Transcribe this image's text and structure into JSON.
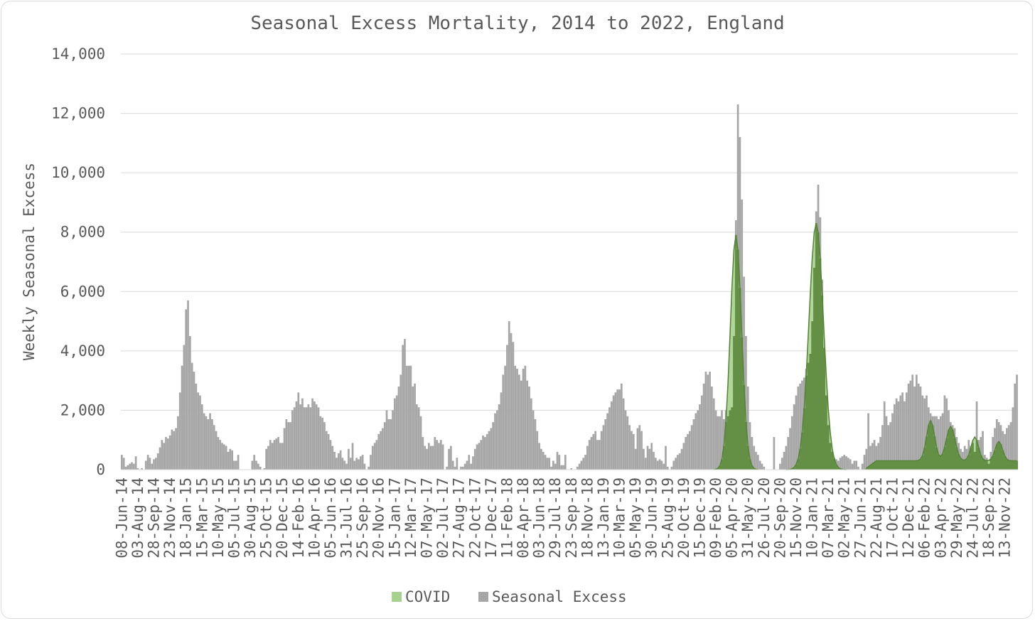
{
  "chart_data": {
    "type": "bar",
    "title": "Seasonal Excess Mortality, 2014 to 2022, England",
    "xlabel": "",
    "ylabel": "Weekly Seasonal Excess",
    "ylim": [
      0,
      14000
    ],
    "yticks": [
      0,
      2000,
      4000,
      6000,
      8000,
      10000,
      12000,
      14000
    ],
    "ytick_labels": [
      "0",
      "2,000",
      "4,000",
      "6,000",
      "8,000",
      "10,000",
      "12,000",
      "14,000"
    ],
    "grid": true,
    "legend_position": "bottom",
    "start_week": "08-Jun-14",
    "x_tick_labels": [
      "08-Jun-14",
      "03-Aug-14",
      "28-Sep-14",
      "23-Nov-14",
      "18-Jan-15",
      "15-Mar-15",
      "10-May-15",
      "05-Jul-15",
      "30-Aug-15",
      "25-Oct-15",
      "20-Dec-15",
      "14-Feb-16",
      "10-Apr-16",
      "05-Jun-16",
      "31-Jul-16",
      "25-Sep-16",
      "20-Nov-16",
      "15-Jan-17",
      "12-Mar-17",
      "07-May-17",
      "02-Jul-17",
      "27-Aug-17",
      "22-Oct-17",
      "17-Dec-17",
      "11-Feb-18",
      "08-Apr-18",
      "03-Jun-18",
      "29-Jul-18",
      "23-Sep-18",
      "18-Nov-18",
      "13-Jan-19",
      "10-Mar-19",
      "05-May-19",
      "30-Jun-19",
      "25-Aug-19",
      "20-Oct-19",
      "15-Dec-19",
      "09-Feb-20",
      "05-Apr-20",
      "31-May-20",
      "26-Jul-20",
      "20-Sep-20",
      "15-Nov-20",
      "10-Jan-21",
      "07-Mar-21",
      "02-May-21",
      "27-Jun-21",
      "22-Aug-21",
      "17-Oct-21",
      "12-Dec-21",
      "06-Feb-22",
      "03-Apr-22",
      "29-May-22",
      "24-Jul-22",
      "18-Sep-22",
      "13-Nov-22"
    ],
    "series": [
      {
        "name": "Seasonal Excess",
        "color": "#a6a6a6",
        "values": [
          500,
          400,
          100,
          150,
          200,
          250,
          200,
          450,
          50,
          0,
          50,
          0,
          300,
          500,
          400,
          200,
          350,
          400,
          550,
          750,
          1000,
          900,
          1100,
          1050,
          1150,
          1350,
          1300,
          1400,
          1800,
          2600,
          3500,
          4200,
          5400,
          5700,
          4500,
          3600,
          3300,
          2900,
          2600,
          2500,
          2200,
          1900,
          1800,
          1700,
          1900,
          1700,
          1500,
          1300,
          1100,
          1000,
          900,
          850,
          800,
          600,
          700,
          650,
          300,
          300,
          500,
          0,
          0,
          0,
          0,
          0,
          0,
          300,
          500,
          300,
          200,
          100,
          0,
          50,
          700,
          800,
          1000,
          900,
          1000,
          1050,
          1100,
          900,
          900,
          1400,
          1700,
          1600,
          1600,
          2000,
          2100,
          2300,
          2600,
          2200,
          2400,
          2100,
          2100,
          2200,
          2100,
          2400,
          2300,
          2200,
          2100,
          1800,
          1750,
          1600,
          1300,
          1200,
          1000,
          800,
          600,
          400,
          550,
          650,
          400,
          300,
          200,
          700,
          400,
          900,
          300,
          400,
          350,
          450,
          500,
          200,
          0,
          100,
          500,
          800,
          900,
          1000,
          1200,
          1300,
          1400,
          1600,
          2000,
          1700,
          1700,
          2000,
          2400,
          2500,
          2800,
          3200,
          4200,
          4400,
          3500,
          3500,
          3500,
          2800,
          2900,
          2200,
          2100,
          1800,
          1100,
          800,
          700,
          900,
          800,
          800,
          1100,
          1000,
          900,
          1000,
          850,
          0,
          100,
          700,
          800,
          300,
          100,
          400,
          0,
          100,
          100,
          200,
          300,
          500,
          200,
          450,
          700,
          850,
          900,
          1000,
          1150,
          1100,
          1200,
          1300,
          1400,
          1600,
          1900,
          2000,
          2200,
          2600,
          3200,
          3500,
          4200,
          5000,
          4600,
          4300,
          3500,
          3400,
          3200,
          3000,
          3400,
          3500,
          3000,
          2800,
          2400,
          2000,
          1700,
          1300,
          900,
          700,
          600,
          500,
          400,
          400,
          100,
          300,
          200,
          600,
          500,
          150,
          150,
          500,
          0,
          0,
          50,
          0,
          0,
          100,
          200,
          300,
          400,
          500,
          800,
          1000,
          1100,
          1200,
          1300,
          1000,
          1000,
          1300,
          1500,
          1700,
          1900,
          2100,
          2300,
          2500,
          2600,
          2700,
          2700,
          2900,
          2400,
          2000,
          1800,
          1500,
          1300,
          1200,
          700,
          1400,
          1500,
          1300,
          700,
          400,
          800,
          700,
          900,
          600,
          400,
          300,
          350,
          300,
          200,
          800,
          100,
          0,
          100,
          300,
          400,
          500,
          550,
          700,
          900,
          1100,
          1200,
          1300,
          1500,
          1700,
          1900,
          2000,
          2200,
          2500,
          2900,
          3300,
          3200,
          3300,
          2800,
          2400,
          2000,
          1800,
          1800,
          2000,
          1700,
          2000,
          1800,
          2000,
          2100,
          4500,
          8400,
          12300,
          11200,
          9100,
          6500,
          4500,
          2800,
          1600,
          1100,
          800,
          600,
          500,
          300,
          200,
          100,
          0,
          0,
          0,
          0,
          1100,
          0,
          0,
          200,
          400,
          600,
          800,
          1100,
          1400,
          1800,
          2200,
          2500,
          2800,
          2900,
          3000,
          3100,
          3400,
          3600,
          3900,
          5000,
          6800,
          8700,
          9600,
          8500,
          6400,
          4100,
          2500,
          1500,
          900,
          600,
          400,
          350,
          300,
          400,
          450,
          500,
          450,
          400,
          350,
          200,
          300,
          300,
          100,
          0,
          200,
          500,
          700,
          1900,
          800,
          900,
          1000,
          800,
          900,
          1100,
          1500,
          2300,
          1800,
          1500,
          1600,
          1900,
          2200,
          2400,
          2300,
          2500,
          2600,
          2300,
          2600,
          2900,
          3000,
          3200,
          2800,
          3200,
          2900,
          2800,
          2500,
          2400,
          2500,
          2100,
          1900,
          1800,
          1800,
          1800,
          1700,
          1800,
          1900,
          2500,
          2400,
          2000,
          1600,
          1500,
          1400,
          1100,
          900,
          700,
          600,
          800,
          700,
          1000,
          800,
          900,
          600,
          2300,
          1000,
          1100,
          1300,
          500,
          400,
          200,
          600,
          1100,
          1400,
          1700,
          1600,
          1500,
          1300,
          1200,
          1400,
          1500,
          1600,
          2100,
          2900,
          3200
        ],
        "peak_value": 12300
      },
      {
        "name": "COVID",
        "color": "#70ad47",
        "fill_color": "#a9d18e",
        "peaks": [
          {
            "center_week": "19-Apr-20",
            "value": 7900
          },
          {
            "center_week": "24-Jan-21",
            "value": 8300
          },
          {
            "center_week": "27-Feb-22",
            "value": 1350
          },
          {
            "center_week": "08-May-22",
            "value": 1150
          },
          {
            "center_week": "31-Jul-22",
            "value": 800
          },
          {
            "center_week": "23-Oct-22",
            "value": 650
          }
        ]
      }
    ]
  }
}
